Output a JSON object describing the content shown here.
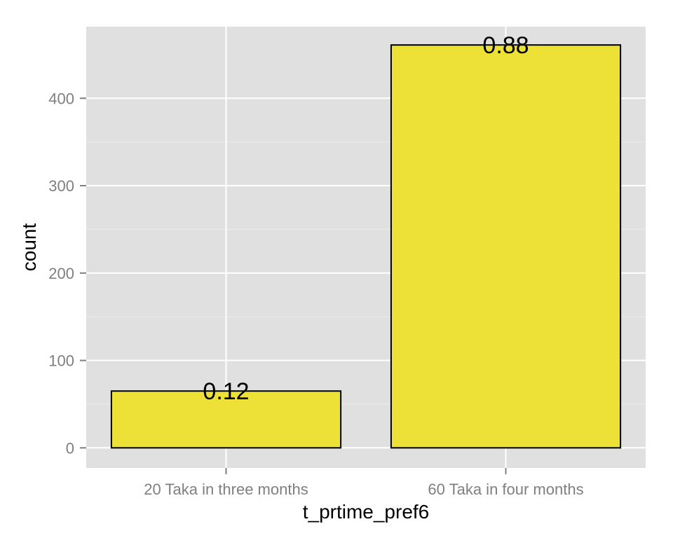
{
  "chart_data": {
    "type": "bar",
    "categories": [
      "20 Taka in three months",
      "60 Taka in four months"
    ],
    "values": [
      65,
      461
    ],
    "data_labels": [
      "0.12",
      "0.88"
    ],
    "xlabel": "t_prtime_pref6",
    "ylabel": "count",
    "ylim": [
      -23,
      482
    ],
    "yticks": [
      0,
      100,
      200,
      300,
      400
    ],
    "ytick_labels": [
      "0",
      "100",
      "200",
      "300",
      "400"
    ],
    "grid": true,
    "legend": "none"
  },
  "colors": {
    "panel_background": "#e0e0e0",
    "grid_major": "#ffffff",
    "grid_minor": "#ececec",
    "bar_fill": "#ede138",
    "bar_outline": "#000000",
    "tick_text": "#7f7f7f"
  }
}
